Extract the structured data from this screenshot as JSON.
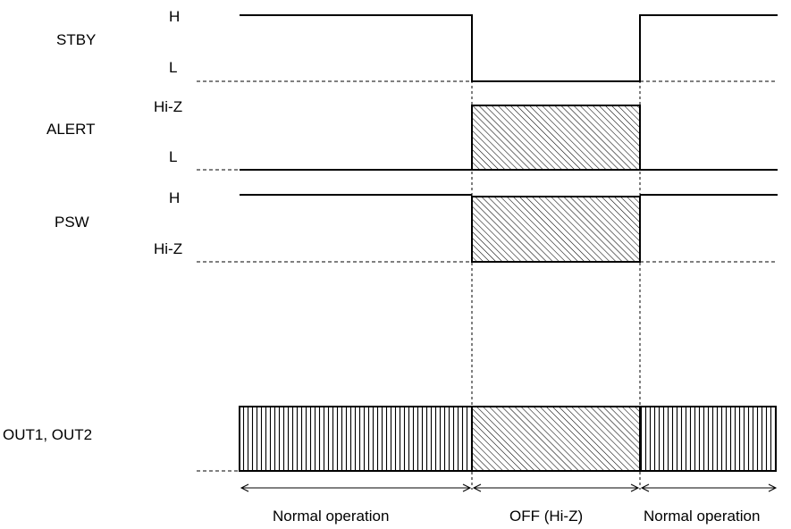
{
  "signals": {
    "stby": {
      "name": "STBY",
      "top_level": "H",
      "bottom_level": "L"
    },
    "alert": {
      "name": "ALERT",
      "top_level": "Hi-Z",
      "bottom_level": "L"
    },
    "psw": {
      "name": "PSW",
      "top_level": "H",
      "bottom_level": "Hi-Z"
    },
    "out": {
      "name": "OUT1, OUT2"
    }
  },
  "phases": {
    "normal_before": "Normal operation",
    "off": "OFF (Hi-Z)",
    "normal_after": "Normal operation"
  }
}
